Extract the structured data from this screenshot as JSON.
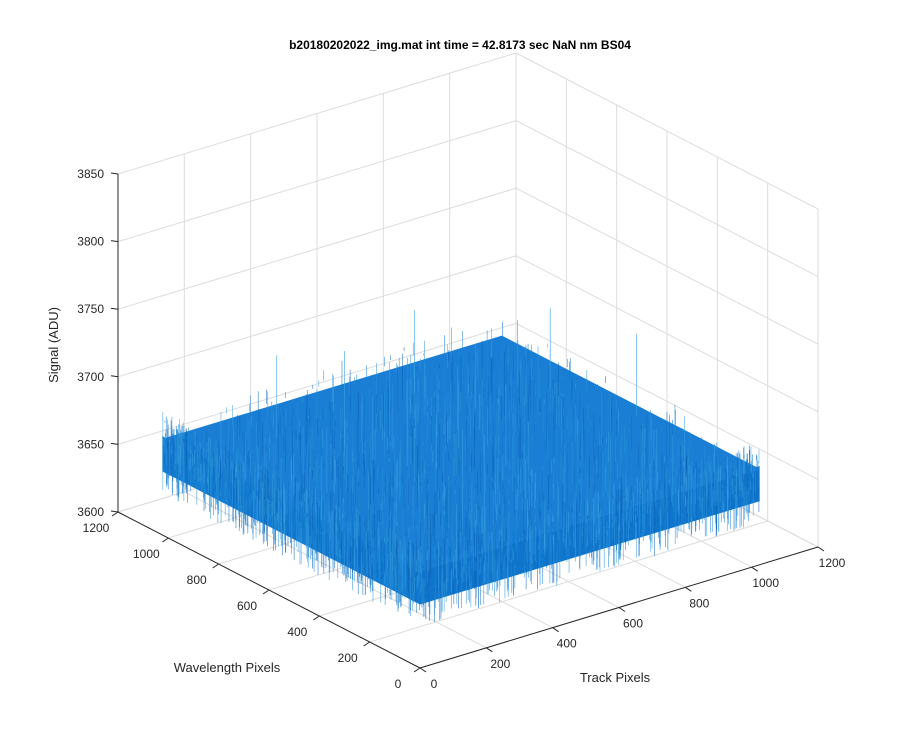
{
  "chart_data": {
    "type": "surface",
    "title": "b20180202022_img.mat int time = 42.8173 sec  NaN nm BS04",
    "xlabel": "Track Pixels",
    "ylabel": "Wavelength Pixels",
    "zlabel": "Signal (ADU)",
    "xlim": [
      0,
      1200
    ],
    "ylim": [
      0,
      1200
    ],
    "zlim": [
      3600,
      3850
    ],
    "x_ticks": [
      "0",
      "200",
      "400",
      "600",
      "800",
      "1000",
      "1200"
    ],
    "y_ticks": [
      "0",
      "200",
      "400",
      "600",
      "800",
      "1000",
      "1200"
    ],
    "z_ticks": [
      "3600",
      "3650",
      "3700",
      "3750",
      "3800",
      "3850"
    ],
    "grid": true,
    "surface": {
      "x_extent": [
        0,
        1024
      ],
      "y_extent": [
        0,
        1024
      ],
      "mean_signal": 3665,
      "min_signal": 3620,
      "max_signal": 3740,
      "color": "#1a7fd4"
    }
  }
}
